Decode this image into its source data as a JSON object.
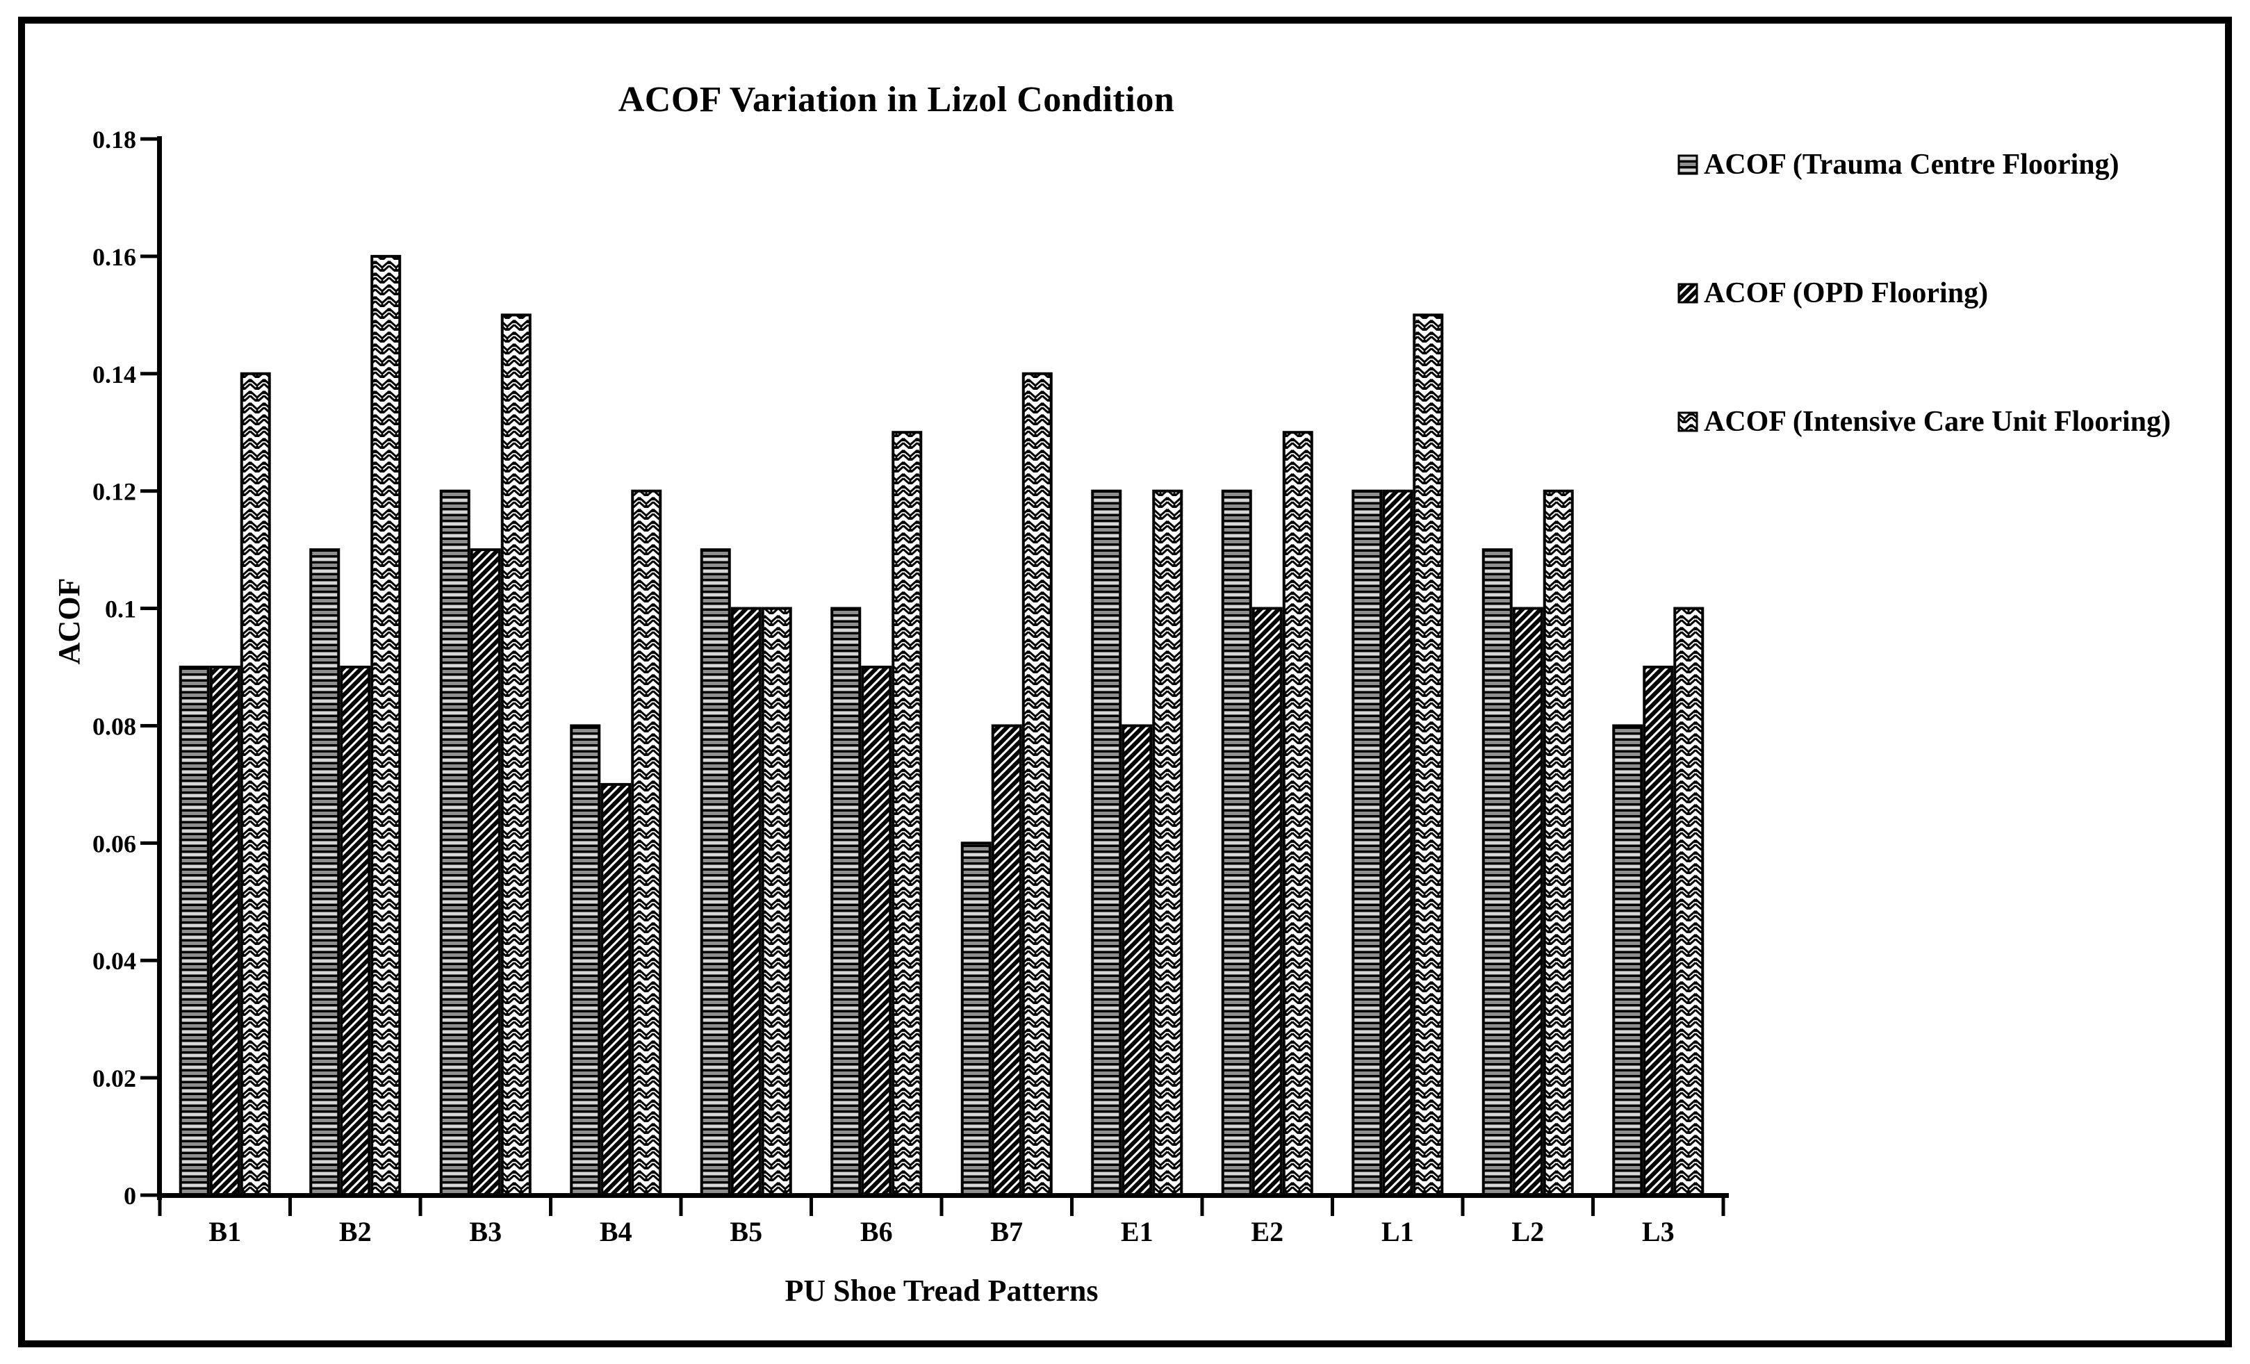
{
  "frame": {
    "background": "#ffffff",
    "border_color": "#000000"
  },
  "title": "ACOF Variation in Lizol Condition",
  "axes": {
    "y_label": "ACOF",
    "x_label": "PU Shoe Tread Patterns",
    "y_tick_labels": [
      "0.18",
      "0.16",
      "0.14",
      "0.12",
      "0.1",
      "0.08",
      "0.06",
      "0.04",
      "0.02",
      "0"
    ]
  },
  "legend": {
    "position": "top-right",
    "items": [
      {
        "label": "ACOF (Trauma Centre Flooring)",
        "pattern": "horizontal-stripes"
      },
      {
        "label": "ACOF (OPD Flooring)",
        "pattern": "diagonal-hatch"
      },
      {
        "label": "ACOF (Intensive Care Unit Flooring)",
        "pattern": "chevron"
      }
    ]
  },
  "chart_data": {
    "type": "bar",
    "title": "ACOF Variation in Lizol Condition",
    "xlabel": "PU Shoe Tread Patterns",
    "ylabel": "ACOF",
    "ylim": [
      0,
      0.18
    ],
    "ytick_step": 0.02,
    "grid": false,
    "legend_position": "top-right",
    "bar_style": {
      "fill_background": "#ffffff",
      "outline": "#000000",
      "monochrome_patterns": true
    },
    "categories": [
      "B1",
      "B2",
      "B3",
      "B4",
      "B5",
      "B6",
      "B7",
      "E1",
      "E2",
      "L1",
      "L2",
      "L3"
    ],
    "series": [
      {
        "name": "ACOF (Trauma Centre Flooring)",
        "pattern": "horizontal-stripes",
        "values": [
          0.09,
          0.11,
          0.12,
          0.08,
          0.11,
          0.1,
          0.06,
          0.12,
          0.12,
          0.12,
          0.11,
          0.08
        ]
      },
      {
        "name": "ACOF (OPD Flooring)",
        "pattern": "diagonal-hatch",
        "values": [
          0.09,
          0.09,
          0.11,
          0.07,
          0.1,
          0.09,
          0.08,
          0.08,
          0.1,
          0.12,
          0.1,
          0.09
        ]
      },
      {
        "name": "ACOF (Intensive Care Unit Flooring)",
        "pattern": "chevron",
        "values": [
          0.14,
          0.16,
          0.15,
          0.12,
          0.1,
          0.13,
          0.14,
          0.12,
          0.13,
          0.15,
          0.12,
          0.1
        ]
      }
    ]
  }
}
